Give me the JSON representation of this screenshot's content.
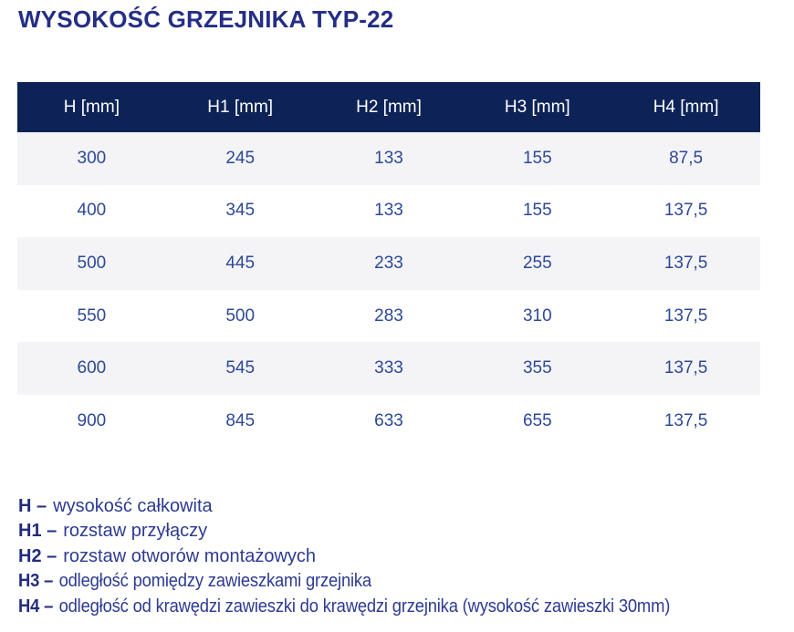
{
  "title": "WYSOKOŚĆ GRZEJNIKA TYP-22",
  "table": {
    "columns": [
      "H [mm]",
      "H1 [mm]",
      "H2 [mm]",
      "H3 [mm]",
      "H4 [mm]"
    ],
    "rows": [
      [
        "300",
        "245",
        "133",
        "155",
        "87,5"
      ],
      [
        "400",
        "345",
        "133",
        "155",
        "137,5"
      ],
      [
        "500",
        "445",
        "233",
        "255",
        "137,5"
      ],
      [
        "550",
        "500",
        "283",
        "310",
        "137,5"
      ],
      [
        "600",
        "545",
        "333",
        "355",
        "137,5"
      ],
      [
        "900",
        "845",
        "633",
        "655",
        "137,5"
      ]
    ]
  },
  "legend": [
    {
      "term": "H –",
      "desc": "wysokość całkowita"
    },
    {
      "term": "H1 –",
      "desc": "rozstaw przyłączy"
    },
    {
      "term": "H2 –",
      "desc": "rozstaw otworów montażowych"
    },
    {
      "term": "H3 –",
      "desc": "odległość pomiędzy zawieszkami grzejnika"
    },
    {
      "term": "H4 –",
      "desc": "odległość od krawędzi zawieszki do krawędzi grzejnika (wysokość zawieszki 30mm)"
    }
  ],
  "colors": {
    "title_text": "#242e85",
    "header_background": "#0d2357",
    "header_text": "#ffffff",
    "row_alt_background": "#f4f4f6",
    "cell_text": "#2c4899",
    "legend_term_text": "#232c7c",
    "legend_desc_text": "#2c3a92"
  }
}
